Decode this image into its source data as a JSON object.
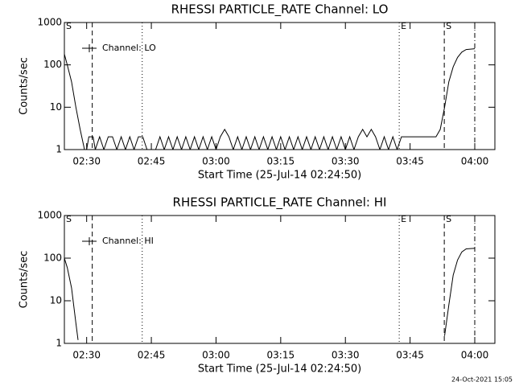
{
  "chart_data": [
    {
      "type": "line",
      "title": "RHESSI PARTICLE_RATE Channel: LO",
      "xlabel": "Start Time (25-Jul-14 02:24:50)",
      "ylabel": "Counts/sec",
      "log_y": true,
      "legend": "top-left",
      "xlim": [
        "02:24:50",
        "04:04:40"
      ],
      "ylim": [
        1,
        1000
      ],
      "xticks": [
        "02:30",
        "02:45",
        "03:00",
        "03:15",
        "03:30",
        "03:45",
        "04:00"
      ],
      "yticks": [
        1,
        10,
        100,
        1000
      ],
      "markers": [
        {
          "x": "02:24:50",
          "label": "S",
          "style": "solid"
        },
        {
          "x": "02:31:18",
          "style": "dashed"
        },
        {
          "x": "02:42:53",
          "style": "dotted"
        },
        {
          "x": "03:42:29",
          "label": "E",
          "style": "dotted"
        },
        {
          "x": "03:52:56",
          "label": "S",
          "style": "dashed"
        },
        {
          "x": "04:00:00",
          "style": "dashdot"
        }
      ],
      "x": [
        "02:24:50",
        "02:25:30",
        "02:26:30",
        "02:27:30",
        "02:28:30",
        "02:29:30",
        "02:30:00",
        "02:30:30",
        "02:31:30",
        "02:32:00",
        "02:33:00",
        "02:34:00",
        "02:35:00",
        "02:36:00",
        "02:37:00",
        "02:38:00",
        "02:39:00",
        "02:40:00",
        "02:41:00",
        "02:42:00",
        "02:43:00",
        "02:44:00",
        "02:46:00",
        "02:47:00",
        "02:48:00",
        "02:49:00",
        "02:50:00",
        "02:51:00",
        "02:52:00",
        "02:53:00",
        "02:54:00",
        "02:55:00",
        "02:56:00",
        "02:57:00",
        "02:58:00",
        "02:59:00",
        "03:00:00",
        "03:01:00",
        "03:02:00",
        "03:03:00",
        "03:04:00",
        "03:05:00",
        "03:06:00",
        "03:07:00",
        "03:08:00",
        "03:09:00",
        "03:10:00",
        "03:11:00",
        "03:12:00",
        "03:13:00",
        "03:14:00",
        "03:15:00",
        "03:16:00",
        "03:17:00",
        "03:18:00",
        "03:19:00",
        "03:20:00",
        "03:21:00",
        "03:22:00",
        "03:23:00",
        "03:24:00",
        "03:25:00",
        "03:26:00",
        "03:27:00",
        "03:28:00",
        "03:29:00",
        "03:30:00",
        "03:31:00",
        "03:32:00",
        "03:33:00",
        "03:34:00",
        "03:35:00",
        "03:36:00",
        "03:37:00",
        "03:38:00",
        "03:39:00",
        "03:40:00",
        "03:41:00",
        "03:42:00",
        "03:43:00",
        "03:51:00",
        "03:52:00",
        "03:53:00",
        "03:54:00",
        "03:55:00",
        "03:56:00",
        "03:57:00",
        "03:58:00",
        "04:00:00"
      ],
      "series": [
        {
          "name": "Channel: LO",
          "color": "#000000",
          "values": [
            180,
            100,
            40,
            10,
            3,
            1,
            1,
            2,
            2,
            1,
            2,
            1,
            2,
            2,
            1,
            2,
            1,
            2,
            1,
            2,
            2,
            1,
            1,
            2,
            1,
            2,
            1,
            2,
            1,
            2,
            1,
            2,
            1,
            2,
            1,
            2,
            1,
            2,
            3,
            2,
            1,
            2,
            1,
            2,
            1,
            2,
            1,
            2,
            1,
            2,
            1,
            2,
            1,
            2,
            1,
            2,
            1,
            2,
            1,
            2,
            1,
            2,
            1,
            2,
            1,
            2,
            1,
            2,
            1,
            2,
            3,
            2,
            3,
            2,
            1,
            2,
            1,
            2,
            1,
            2,
            2,
            3,
            10,
            40,
            90,
            150,
            200,
            230,
            240
          ]
        }
      ]
    },
    {
      "type": "line",
      "title": "RHESSI PARTICLE_RATE Channel: HI",
      "xlabel": "Start Time (25-Jul-14 02:24:50)",
      "ylabel": "Counts/sec",
      "log_y": true,
      "legend": "top-left",
      "xlim": [
        "02:24:50",
        "04:04:40"
      ],
      "ylim": [
        1,
        1000
      ],
      "xticks": [
        "02:30",
        "02:45",
        "03:00",
        "03:15",
        "03:30",
        "03:45",
        "04:00"
      ],
      "yticks": [
        1,
        10,
        100,
        1000
      ],
      "markers": [
        {
          "x": "02:24:50",
          "label": "S",
          "style": "solid"
        },
        {
          "x": "02:31:18",
          "style": "dashed"
        },
        {
          "x": "02:42:53",
          "style": "dotted"
        },
        {
          "x": "03:42:29",
          "label": "E",
          "style": "dotted"
        },
        {
          "x": "03:52:56",
          "label": "S",
          "style": "dashed"
        },
        {
          "x": "04:00:00",
          "style": "dashdot"
        }
      ],
      "x": [
        "02:24:50",
        "02:25:30",
        "02:26:30",
        "02:27:30",
        "02:28:00",
        "02:29:00",
        "03:53:00",
        "03:54:00",
        "03:55:00",
        "03:56:00",
        "03:57:00",
        "03:58:00",
        "04:00:00"
      ],
      "series": [
        {
          "name": "Channel: HI",
          "color": "#000000",
          "values": [
            100,
            60,
            20,
            3,
            1.2,
            null,
            1.5,
            8,
            40,
            90,
            140,
            165,
            170
          ]
        }
      ]
    }
  ],
  "footer": "24-Oct-2021 15:05"
}
